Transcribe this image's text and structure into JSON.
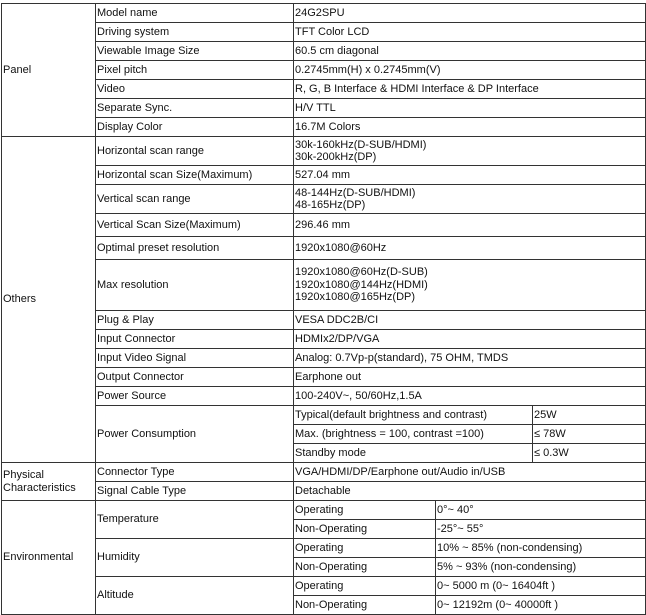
{
  "groups": {
    "panel": "Panel",
    "others": "Others",
    "physical": [
      "Physical",
      "Characteristics"
    ],
    "environmental": "Environmental"
  },
  "panel": [
    {
      "label": "Model name",
      "value": "24G2SPU"
    },
    {
      "label": "Driving system",
      "value": "TFT Color LCD"
    },
    {
      "label": "Viewable Image Size",
      "value": "60.5 cm diagonal"
    },
    {
      "label": "Pixel pitch",
      "value": "0.2745mm(H) x 0.2745mm(V)"
    },
    {
      "label": "Video",
      "value": "R, G, B Interface & HDMI Interface & DP Interface"
    },
    {
      "label": "Separate Sync.",
      "value": "H/V TTL"
    },
    {
      "label": "Display Color",
      "value": "16.7M Colors"
    }
  ],
  "others": {
    "h_scan_range": {
      "label": "Horizontal scan range",
      "values": [
        "30k-160kHz(D-SUB/HDMI)",
        "30k-200kHz(DP)"
      ]
    },
    "h_scan_size": {
      "label": "Horizontal scan Size(Maximum)",
      "value": "527.04 mm"
    },
    "v_scan_range": {
      "label": "Vertical scan range",
      "values": [
        "48-144Hz(D-SUB/HDMI)",
        "48-165Hz(DP)"
      ]
    },
    "v_scan_size": {
      "label": "Vertical Scan Size(Maximum)",
      "value": "296.46 mm"
    },
    "optimal": {
      "label": "Optimal preset resolution",
      "value": "1920x1080@60Hz"
    },
    "max_res": {
      "label": "Max resolution",
      "values": [
        "1920x1080@60Hz(D-SUB)",
        "1920x1080@144Hz(HDMI)",
        "1920x1080@165Hz(DP)"
      ]
    },
    "plug": {
      "label": "Plug & Play",
      "value": "VESA DDC2B/CI"
    },
    "input_conn": {
      "label": "Input Connector",
      "value": "HDMIx2/DP/VGA"
    },
    "input_signal": {
      "label": "Input Video Signal",
      "value": "Analog: 0.7Vp-p(standard), 75 OHM, TMDS"
    },
    "output_conn": {
      "label": "Output Connector",
      "value": "Earphone out"
    },
    "power_source": {
      "label": "Power Source",
      "value": "100-240V~, 50/60Hz,1.5A"
    },
    "power_consumption": {
      "label": "Power Consumption",
      "rows": [
        {
          "label": "Typical(default brightness and contrast)",
          "value": "25W"
        },
        {
          "label": "Max. (brightness = 100, contrast =100)",
          "value": "≤ 78W"
        },
        {
          "label": "Standby mode",
          "value": "≤ 0.3W"
        }
      ]
    }
  },
  "physical": [
    {
      "label": "Connector Type",
      "value": "VGA/HDMI/DP/Earphone out/Audio in/USB"
    },
    {
      "label": "Signal Cable Type",
      "value": "Detachable"
    }
  ],
  "environmental": {
    "temperature": {
      "label": "Temperature",
      "operating": "0°~ 40°",
      "non_operating": "-25°~ 55°"
    },
    "humidity": {
      "label": "Humidity",
      "operating": "10% ~ 85% (non-condensing)",
      "non_operating": "5% ~ 93% (non-condensing)"
    },
    "altitude": {
      "label": "Altitude",
      "operating": "0~ 5000 m (0~ 16404ft )",
      "non_operating": "0~ 12192m (0~ 40000ft )"
    },
    "operating_label": "Operating",
    "non_operating_label": "Non-Operating"
  }
}
